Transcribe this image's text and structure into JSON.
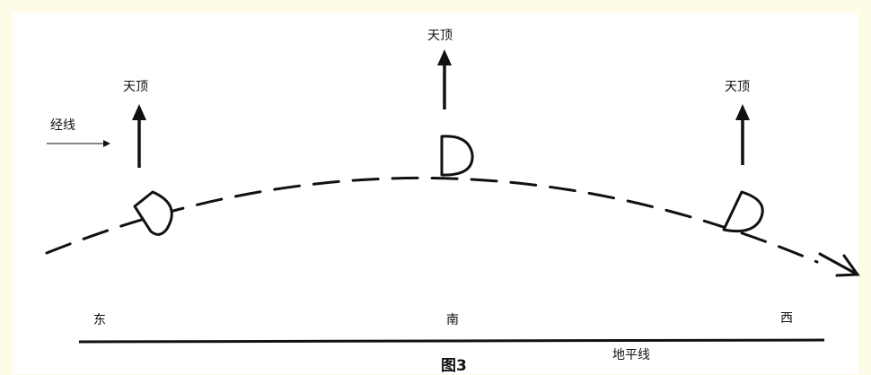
{
  "labels": {
    "zenith_left": "天顶",
    "zenith_center": "天顶",
    "zenith_right": "天顶",
    "meridian": "经线",
    "east": "东",
    "south": "南",
    "west": "西",
    "horizon": "地平线",
    "figure": "图3"
  },
  "colors": {
    "background": "#fefbe6",
    "canvas": "#ffffff",
    "ink": "#111111"
  }
}
